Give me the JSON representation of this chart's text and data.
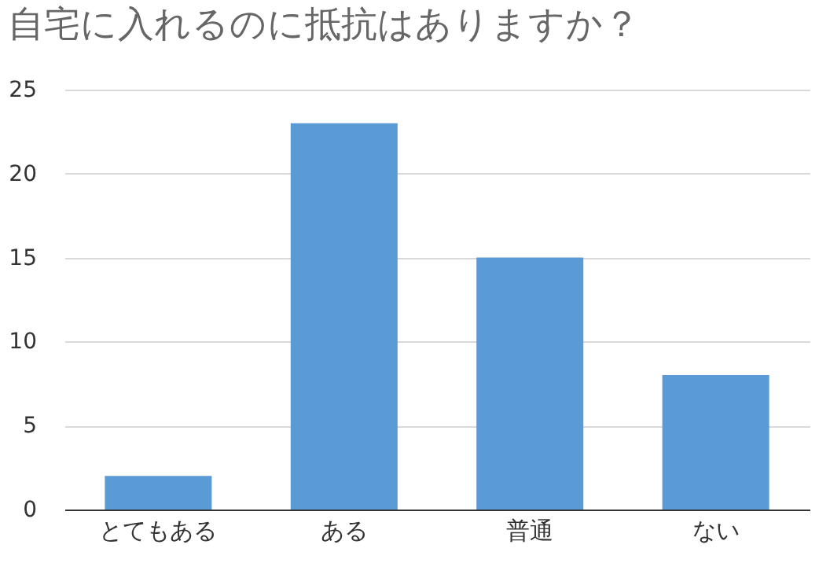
{
  "chart_data": {
    "type": "bar",
    "title": "自宅に入れるのに抵抗はありますか？",
    "categories": [
      "とてもある",
      "ある",
      "普通",
      "ない"
    ],
    "values": [
      2,
      23,
      15,
      8
    ],
    "color": "#5b9bd5",
    "ylim": [
      0,
      25
    ],
    "yticks": [
      0,
      5,
      10,
      15,
      20,
      25
    ],
    "grid": "y"
  }
}
